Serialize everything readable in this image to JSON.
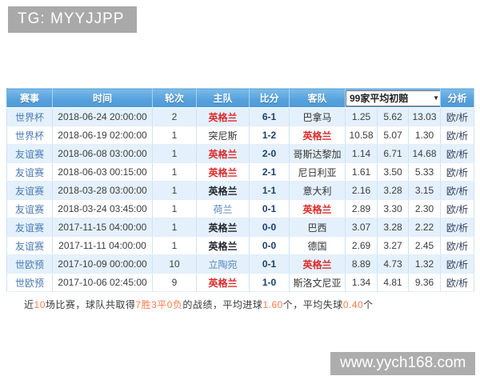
{
  "banner": {
    "text": "TG: MYYJJPP"
  },
  "watermark": {
    "text": "www.yych168.com"
  },
  "colors": {
    "header_blue": "#55a0dc",
    "row_alt_blue": "#e4f1fc",
    "england_win_red": "#e02a2a",
    "draw_bold_dark": "#23262e",
    "team_blue": "#5b86c0",
    "league_link_blue": "#4a7ab5",
    "summary_highlight_orange": "#ff7a4d",
    "banner_gray": "#a9a9a9"
  },
  "table": {
    "headers": {
      "event": "赛事",
      "time": "时间",
      "round": "轮次",
      "home": "主队",
      "score": "比分",
      "away": "客队",
      "analysis": "分析"
    },
    "odds_dropdown": {
      "label": "99家平均初赔",
      "caret_icon": "▼"
    },
    "rows": [
      {
        "event": "世界杯",
        "time": "2018-06-24 20:00:00",
        "round": "2",
        "home": {
          "name": "英格兰",
          "emphasis": "red"
        },
        "score": "6-1",
        "away": {
          "name": "巴拿马",
          "emphasis": "normal"
        },
        "odds": [
          "1.25",
          "5.62",
          "13.03"
        ],
        "analysis": "欧/析"
      },
      {
        "event": "世界杯",
        "time": "2018-06-19 02:00:00",
        "round": "1",
        "home": {
          "name": "突尼斯",
          "emphasis": "normal"
        },
        "score": "1-2",
        "away": {
          "name": "英格兰",
          "emphasis": "red"
        },
        "odds": [
          "10.58",
          "5.07",
          "1.30"
        ],
        "analysis": "欧/析"
      },
      {
        "event": "友谊赛",
        "time": "2018-06-08 03:00:00",
        "round": "1",
        "home": {
          "name": "英格兰",
          "emphasis": "red"
        },
        "score": "2-0",
        "away": {
          "name": "哥斯达黎加",
          "emphasis": "normal"
        },
        "odds": [
          "1.14",
          "6.71",
          "14.68"
        ],
        "analysis": "欧/析"
      },
      {
        "event": "友谊赛",
        "time": "2018-06-03 00:15:00",
        "round": "1",
        "home": {
          "name": "英格兰",
          "emphasis": "red"
        },
        "score": "2-1",
        "away": {
          "name": "尼日利亚",
          "emphasis": "normal"
        },
        "odds": [
          "1.61",
          "3.50",
          "5.33"
        ],
        "analysis": "欧/析"
      },
      {
        "event": "友谊赛",
        "time": "2018-03-28 03:00:00",
        "round": "1",
        "home": {
          "name": "英格兰",
          "emphasis": "bold"
        },
        "score": "1-1",
        "away": {
          "name": "意大利",
          "emphasis": "normal"
        },
        "odds": [
          "2.16",
          "3.28",
          "3.15"
        ],
        "analysis": "欧/析"
      },
      {
        "event": "友谊赛",
        "time": "2018-03-24 03:45:00",
        "round": "1",
        "home": {
          "name": "荷兰",
          "emphasis": "blue"
        },
        "score": "0-1",
        "away": {
          "name": "英格兰",
          "emphasis": "red"
        },
        "odds": [
          "2.89",
          "3.30",
          "2.30"
        ],
        "analysis": "欧/析"
      },
      {
        "event": "友谊赛",
        "time": "2017-11-15 04:00:00",
        "round": "1",
        "home": {
          "name": "英格兰",
          "emphasis": "bold"
        },
        "score": "0-0",
        "away": {
          "name": "巴西",
          "emphasis": "normal"
        },
        "odds": [
          "3.07",
          "3.28",
          "2.22"
        ],
        "analysis": "欧/析"
      },
      {
        "event": "友谊赛",
        "time": "2017-11-11 04:00:00",
        "round": "1",
        "home": {
          "name": "英格兰",
          "emphasis": "bold"
        },
        "score": "0-0",
        "away": {
          "name": "德国",
          "emphasis": "normal"
        },
        "odds": [
          "2.69",
          "3.27",
          "2.45"
        ],
        "analysis": "欧/析"
      },
      {
        "event": "世欧预",
        "time": "2017-10-09 00:00:00",
        "round": "10",
        "home": {
          "name": "立陶宛",
          "emphasis": "blue"
        },
        "score": "0-1",
        "away": {
          "name": "英格兰",
          "emphasis": "red"
        },
        "odds": [
          "8.89",
          "4.73",
          "1.32"
        ],
        "analysis": "欧/析"
      },
      {
        "event": "世欧预",
        "time": "2017-10-06 02:45:00",
        "round": "9",
        "home": {
          "name": "英格兰",
          "emphasis": "red"
        },
        "score": "1-0",
        "away": {
          "name": "斯洛文尼亚",
          "emphasis": "normal"
        },
        "odds": [
          "1.34",
          "4.81",
          "9.36"
        ],
        "analysis": "欧/析"
      }
    ]
  },
  "summary": {
    "segments": [
      {
        "text": "近",
        "hl": false
      },
      {
        "text": "10",
        "hl": true
      },
      {
        "text": "场比赛，球队共取得",
        "hl": false
      },
      {
        "text": "7胜3平0负",
        "hl": true
      },
      {
        "text": "的战绩，平均进球",
        "hl": false
      },
      {
        "text": "1.60",
        "hl": true
      },
      {
        "text": "个，平均失球",
        "hl": false
      },
      {
        "text": "0.40",
        "hl": true
      },
      {
        "text": "个",
        "hl": false
      }
    ]
  }
}
